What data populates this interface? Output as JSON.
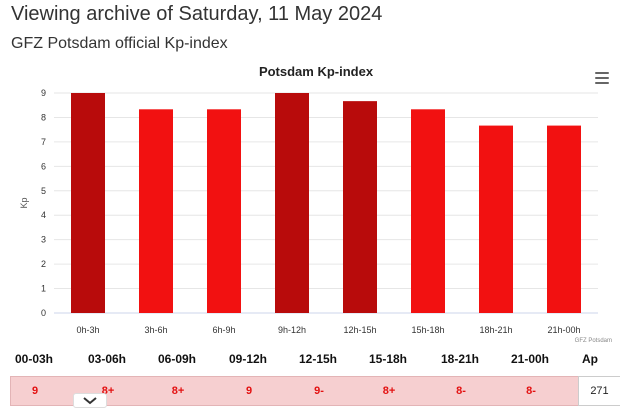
{
  "header": {
    "title": "Viewing archive of Saturday, 11 May 2024",
    "subtitle": "GFZ Potsdam official Kp-index"
  },
  "chart_data": {
    "type": "bar",
    "title": "Potsdam Kp-index",
    "ylabel": "Kp",
    "xlabel": "",
    "ylim": [
      0,
      9
    ],
    "yticks": [
      0,
      1,
      2,
      3,
      4,
      5,
      6,
      7,
      8,
      9
    ],
    "categories": [
      "0h-3h",
      "3h-6h",
      "6h-9h",
      "9h-12h",
      "12h-15h",
      "15h-18h",
      "18h-21h",
      "21h-00h"
    ],
    "values": [
      9,
      8.333,
      8.333,
      9,
      8.667,
      8.333,
      7.667,
      7.667
    ],
    "bar_colors": [
      "#b80b0b",
      "#f21111",
      "#f21111",
      "#b80b0b",
      "#b80b0b",
      "#f21111",
      "#f21111",
      "#f21111"
    ],
    "grid": true,
    "credit": "GFZ Potsdam"
  },
  "table": {
    "headers": [
      "00-03h",
      "03-06h",
      "06-09h",
      "09-12h",
      "12-15h",
      "15-18h",
      "18-21h",
      "21-00h",
      "Ap"
    ],
    "values": [
      "9",
      "8+",
      "8+",
      "9",
      "9-",
      "8+",
      "8-",
      "8-"
    ],
    "ap": "271",
    "row_color": "#f6cfd0",
    "value_color": "#e31111"
  },
  "icons": {
    "menu": "hamburger-menu-icon",
    "expand": "chevron-down-icon"
  }
}
